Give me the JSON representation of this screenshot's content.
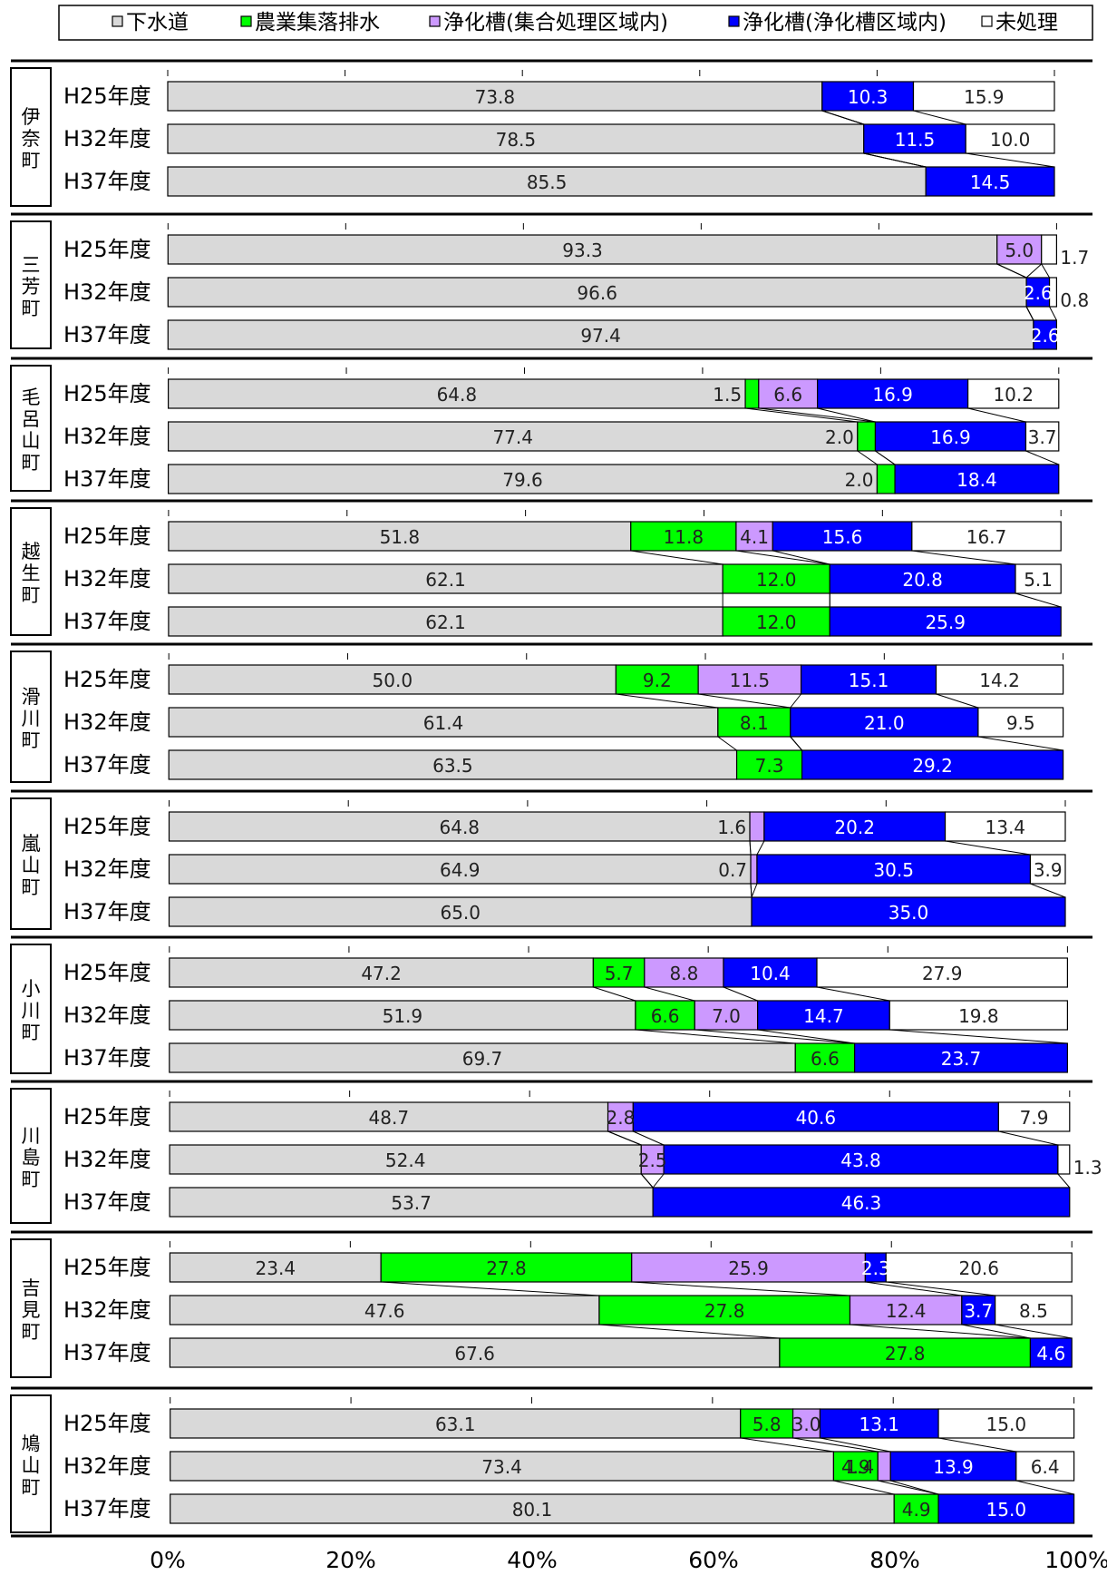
{
  "chart_data": {
    "type": "bar",
    "stacked": true,
    "percent": true,
    "orientation": "horizontal",
    "legend_position": "top",
    "series": [
      {
        "key": "sewer",
        "name": "下水道",
        "color": "#D9D9D9"
      },
      {
        "key": "agri",
        "name": "農業集落排水",
        "color": "#00FF00"
      },
      {
        "key": "johka_group",
        "name": "浄化槽(集合処理区域内)",
        "color": "#CC99FF"
      },
      {
        "key": "johka_indiv",
        "name": "浄化槽(浄化槽区域内)",
        "color": "#0000FF"
      },
      {
        "key": "untreated",
        "name": "未処理",
        "color": "#FFFFFF"
      }
    ],
    "x_ticks": [
      "0%",
      "20%",
      "40%",
      "60%",
      "80%",
      "100%"
    ],
    "xlim": [
      0,
      100
    ],
    "groups": [
      {
        "name": "伊奈町",
        "bars": [
          {
            "label": "H25年度",
            "values": [
              73.8,
              0,
              0,
              10.3,
              15.9
            ]
          },
          {
            "label": "H32年度",
            "values": [
              78.5,
              0,
              0,
              11.5,
              10.0
            ]
          },
          {
            "label": "H37年度",
            "values": [
              85.5,
              0,
              0,
              14.5,
              0
            ]
          }
        ]
      },
      {
        "name": "三芳町",
        "bars": [
          {
            "label": "H25年度",
            "values": [
              93.3,
              0,
              5.0,
              0,
              1.7
            ]
          },
          {
            "label": "H32年度",
            "values": [
              96.6,
              0,
              0,
              2.6,
              0.8
            ]
          },
          {
            "label": "H37年度",
            "values": [
              97.4,
              0,
              0,
              2.6,
              0
            ]
          }
        ]
      },
      {
        "name": "毛呂山町",
        "bars": [
          {
            "label": "H25年度",
            "values": [
              64.8,
              1.5,
              6.6,
              16.9,
              10.2
            ]
          },
          {
            "label": "H32年度",
            "values": [
              77.4,
              2.0,
              0,
              16.9,
              3.7
            ]
          },
          {
            "label": "H37年度",
            "values": [
              79.6,
              2.0,
              0,
              18.4,
              0
            ]
          }
        ]
      },
      {
        "name": "越生町",
        "bars": [
          {
            "label": "H25年度",
            "values": [
              51.8,
              11.8,
              4.1,
              15.6,
              16.7
            ]
          },
          {
            "label": "H32年度",
            "values": [
              62.1,
              12.0,
              0,
              20.8,
              5.1
            ]
          },
          {
            "label": "H37年度",
            "values": [
              62.1,
              12.0,
              0,
              25.9,
              0
            ]
          }
        ]
      },
      {
        "name": "滑川町",
        "bars": [
          {
            "label": "H25年度",
            "values": [
              50.0,
              9.2,
              11.5,
              15.1,
              14.2
            ]
          },
          {
            "label": "H32年度",
            "values": [
              61.4,
              8.1,
              0,
              21.0,
              9.5
            ]
          },
          {
            "label": "H37年度",
            "values": [
              63.5,
              7.3,
              0,
              29.2,
              0
            ]
          }
        ]
      },
      {
        "name": "嵐山町",
        "bars": [
          {
            "label": "H25年度",
            "values": [
              64.8,
              0,
              1.6,
              20.2,
              13.4
            ]
          },
          {
            "label": "H32年度",
            "values": [
              64.9,
              0,
              0.7,
              30.5,
              3.9
            ]
          },
          {
            "label": "H37年度",
            "values": [
              65.0,
              0,
              0,
              35.0,
              0
            ]
          }
        ]
      },
      {
        "name": "小川町",
        "bars": [
          {
            "label": "H25年度",
            "values": [
              47.2,
              5.7,
              8.8,
              10.4,
              27.9
            ]
          },
          {
            "label": "H32年度",
            "values": [
              51.9,
              6.6,
              7.0,
              14.7,
              19.8
            ]
          },
          {
            "label": "H37年度",
            "values": [
              69.7,
              6.6,
              0,
              23.7,
              0
            ]
          }
        ]
      },
      {
        "name": "川島町",
        "bars": [
          {
            "label": "H25年度",
            "values": [
              48.7,
              0,
              2.8,
              40.6,
              7.9
            ]
          },
          {
            "label": "H32年度",
            "values": [
              52.4,
              0,
              2.5,
              43.8,
              1.3
            ]
          },
          {
            "label": "H37年度",
            "values": [
              53.7,
              0,
              0,
              46.3,
              0
            ]
          }
        ]
      },
      {
        "name": "吉見町",
        "bars": [
          {
            "label": "H25年度",
            "values": [
              23.4,
              27.8,
              25.9,
              2.3,
              20.6
            ]
          },
          {
            "label": "H32年度",
            "values": [
              47.6,
              27.8,
              12.4,
              3.7,
              8.5
            ]
          },
          {
            "label": "H37年度",
            "values": [
              67.6,
              27.8,
              0,
              4.6,
              0
            ]
          }
        ]
      },
      {
        "name": "鳩山町",
        "bars": [
          {
            "label": "H25年度",
            "values": [
              63.1,
              5.8,
              3.0,
              13.1,
              15.0
            ]
          },
          {
            "label": "H32年度",
            "values": [
              73.4,
              4.9,
              1.4,
              13.9,
              6.4
            ]
          },
          {
            "label": "H37年度",
            "values": [
              80.1,
              4.9,
              0,
              15.0,
              0
            ]
          }
        ]
      }
    ]
  }
}
